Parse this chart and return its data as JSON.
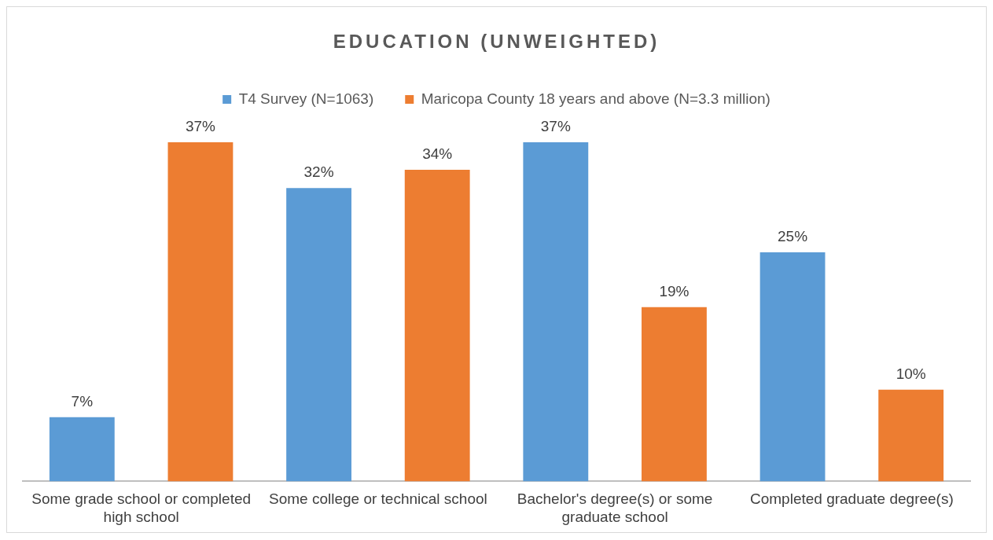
{
  "chart_data": {
    "type": "bar",
    "title": "EDUCATION (UNWEIGHTED)",
    "categories": [
      "Some grade school or completed high school",
      "Some college or technical school",
      "Bachelor's degree(s) or some graduate school",
      "Completed graduate degree(s)"
    ],
    "series": [
      {
        "name": "T4 Survey (N=1063)",
        "color": "#5b9bd5",
        "values": [
          7,
          32,
          37,
          25
        ],
        "value_labels": [
          "7%",
          "32%",
          "37%",
          "25%"
        ]
      },
      {
        "name": "Maricopa County 18 years and above (N=3.3 million)",
        "color": "#ed7d31",
        "values": [
          37,
          34,
          19,
          10
        ],
        "value_labels": [
          "37%",
          "34%",
          "19%",
          "10%"
        ]
      }
    ],
    "legend": "top",
    "grid": false
  }
}
